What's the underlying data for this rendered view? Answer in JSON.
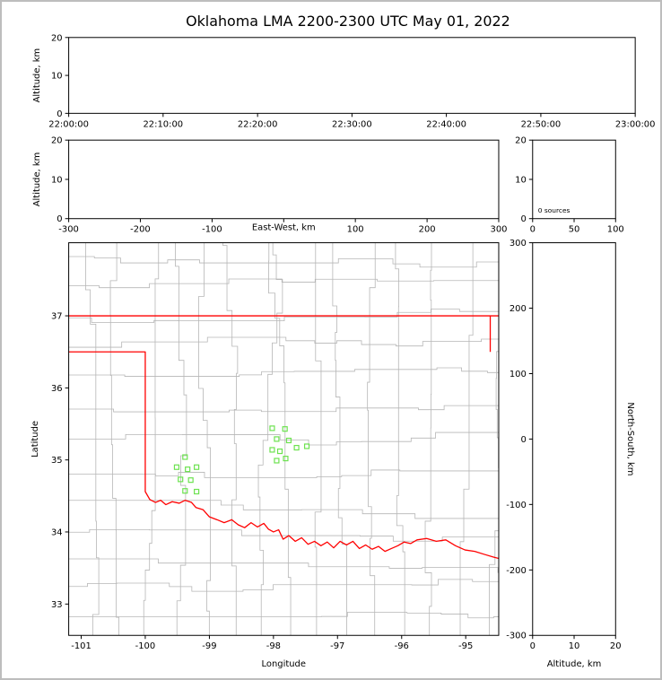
{
  "title": "Oklahoma LMA 2200-2300 UTC May 01, 2022",
  "colors": {
    "background": "#ffffff",
    "frame_border": "#bdbdbd",
    "panel_border": "#000000",
    "tick_color": "#000000",
    "state_border": "#ff0000",
    "county_lines": "#b6b6b6",
    "station_marker": "#6ce24f",
    "text": "#000000"
  },
  "chart_data": {
    "type": "scatter",
    "title": "Oklahoma LMA 2200-2300 UTC May 01, 2022",
    "description": "XLMA-style lightning mapping array display; all source panels are empty (0 sources); green squares on plan view are LMA station locations in Oklahoma.",
    "panels": {
      "time_height": {
        "name": "altitude vs time",
        "ylabel": "Altitude, km",
        "y_range": [
          0,
          20
        ],
        "y_ticks": {
          "values": [
            0,
            10,
            20
          ],
          "labels": [
            "0",
            "10",
            "20"
          ]
        },
        "x_range_seconds": [
          0,
          3600
        ],
        "x_ticks": {
          "values": [
            0,
            600,
            1200,
            1800,
            2400,
            3000,
            3600
          ],
          "labels": [
            "22:00:00",
            "22:10:00",
            "22:20:00",
            "22:30:00",
            "22:40:00",
            "22:50:00",
            "23:00:00"
          ]
        },
        "points": []
      },
      "ew_height": {
        "name": "altitude vs east-west distance",
        "xlabel": "East-West, km",
        "ylabel": "Altitude, km",
        "x_range": [
          -300,
          300
        ],
        "x_ticks": {
          "values": [
            -300,
            -200,
            -100,
            0,
            100,
            200,
            300
          ],
          "labels": [
            "-300",
            "-200",
            "-100",
            "",
            "100",
            "200",
            "300"
          ]
        },
        "y_range": [
          0,
          20
        ],
        "y_ticks": {
          "values": [
            0,
            10,
            20
          ],
          "labels": [
            "0",
            "10",
            "20"
          ]
        },
        "points": []
      },
      "histogram": {
        "name": "altitude histogram of sources",
        "annotation": "0 sources",
        "x_range": [
          0,
          100
        ],
        "x_ticks": {
          "values": [
            0,
            50,
            100
          ],
          "labels": [
            "0",
            "50",
            "100"
          ]
        },
        "y_range": [
          0,
          20
        ],
        "y_ticks": {
          "values": [
            0,
            10,
            20
          ],
          "labels": [
            "0",
            "10",
            "20"
          ]
        },
        "values": []
      },
      "plan_view": {
        "name": "plan view map",
        "xlabel": "Longitude",
        "ylabel": "Latitude",
        "x_range": [
          -101.195,
          -94.485
        ],
        "x_ticks": {
          "values": [
            -101,
            -100,
            -99,
            -98,
            -97,
            -96,
            -95
          ],
          "labels": [
            "-101",
            "-100",
            "-99",
            "-98",
            "-97",
            "-96",
            "-95"
          ]
        },
        "y_range": [
          32.565,
          38.015
        ],
        "y_ticks": {
          "values": [
            33,
            34,
            35,
            36,
            37
          ],
          "labels": [
            "33",
            "34",
            "35",
            "36",
            "37"
          ]
        },
        "points": []
      },
      "ns_height": {
        "name": "north-south distance vs altitude",
        "xlabel": "Altitude, km",
        "ylabel": "North-South, km",
        "x_range": [
          0,
          20
        ],
        "x_ticks": {
          "values": [
            0,
            10,
            20
          ],
          "labels": [
            "0",
            "10",
            "20"
          ]
        },
        "y_range": [
          -300,
          300
        ],
        "y_ticks": {
          "values": [
            -300,
            -200,
            -100,
            0,
            100,
            200,
            300
          ],
          "labels": [
            "-300",
            "-200",
            "-100",
            "0",
            "100",
            "200",
            "300"
          ]
        },
        "points": []
      }
    },
    "map": {
      "state_border_segments": [
        [
          [
            -101.3,
            37.0
          ],
          [
            -94.43,
            37.0
          ]
        ],
        [
          [
            -94.617,
            37.0
          ],
          [
            -94.617,
            36.5
          ]
        ],
        [
          [
            -101.3,
            36.5
          ],
          [
            -100.0,
            36.5
          ],
          [
            -100.0,
            34.56
          ],
          [
            -99.93,
            34.45
          ],
          [
            -99.84,
            34.41
          ],
          [
            -99.76,
            34.44
          ],
          [
            -99.68,
            34.38
          ],
          [
            -99.58,
            34.42
          ],
          [
            -99.47,
            34.4
          ],
          [
            -99.38,
            34.44
          ],
          [
            -99.28,
            34.41
          ],
          [
            -99.21,
            34.34
          ],
          [
            -99.1,
            34.31
          ],
          [
            -99.0,
            34.21
          ],
          [
            -98.88,
            34.17
          ],
          [
            -98.77,
            34.13
          ],
          [
            -98.65,
            34.17
          ],
          [
            -98.55,
            34.1
          ],
          [
            -98.45,
            34.06
          ],
          [
            -98.35,
            34.13
          ],
          [
            -98.25,
            34.07
          ],
          [
            -98.15,
            34.12
          ],
          [
            -98.08,
            34.04
          ],
          [
            -98.0,
            34.0
          ],
          [
            -97.92,
            34.03
          ],
          [
            -97.85,
            33.9
          ],
          [
            -97.76,
            33.95
          ],
          [
            -97.66,
            33.87
          ],
          [
            -97.56,
            33.92
          ],
          [
            -97.46,
            33.83
          ],
          [
            -97.36,
            33.87
          ],
          [
            -97.26,
            33.81
          ],
          [
            -97.16,
            33.86
          ],
          [
            -97.06,
            33.78
          ],
          [
            -96.96,
            33.87
          ],
          [
            -96.86,
            33.82
          ],
          [
            -96.76,
            33.87
          ],
          [
            -96.66,
            33.77
          ],
          [
            -96.56,
            33.82
          ],
          [
            -96.46,
            33.76
          ],
          [
            -96.36,
            33.8
          ],
          [
            -96.26,
            33.73
          ],
          [
            -96.16,
            33.77
          ],
          [
            -96.06,
            33.81
          ],
          [
            -95.96,
            33.86
          ],
          [
            -95.86,
            33.84
          ],
          [
            -95.76,
            33.89
          ],
          [
            -95.61,
            33.91
          ],
          [
            -95.46,
            33.87
          ],
          [
            -95.31,
            33.89
          ],
          [
            -95.16,
            33.81
          ],
          [
            -95.01,
            33.75
          ],
          [
            -94.86,
            33.73
          ],
          [
            -94.71,
            33.69
          ],
          [
            -94.56,
            33.65
          ],
          [
            -94.43,
            33.62
          ]
        ]
      ],
      "stations": [
        [
          -98.02,
          35.44
        ],
        [
          -97.82,
          35.43
        ],
        [
          -97.95,
          35.29
        ],
        [
          -97.76,
          35.27
        ],
        [
          -98.02,
          35.14
        ],
        [
          -97.9,
          35.12
        ],
        [
          -97.64,
          35.17
        ],
        [
          -97.48,
          35.19
        ],
        [
          -97.81,
          35.02
        ],
        [
          -97.95,
          34.99
        ],
        [
          -99.38,
          35.04
        ],
        [
          -99.51,
          34.9
        ],
        [
          -99.34,
          34.87
        ],
        [
          -99.2,
          34.9
        ],
        [
          -99.45,
          34.73
        ],
        [
          -99.29,
          34.72
        ],
        [
          -99.38,
          34.57
        ],
        [
          -99.2,
          34.56
        ]
      ]
    }
  }
}
